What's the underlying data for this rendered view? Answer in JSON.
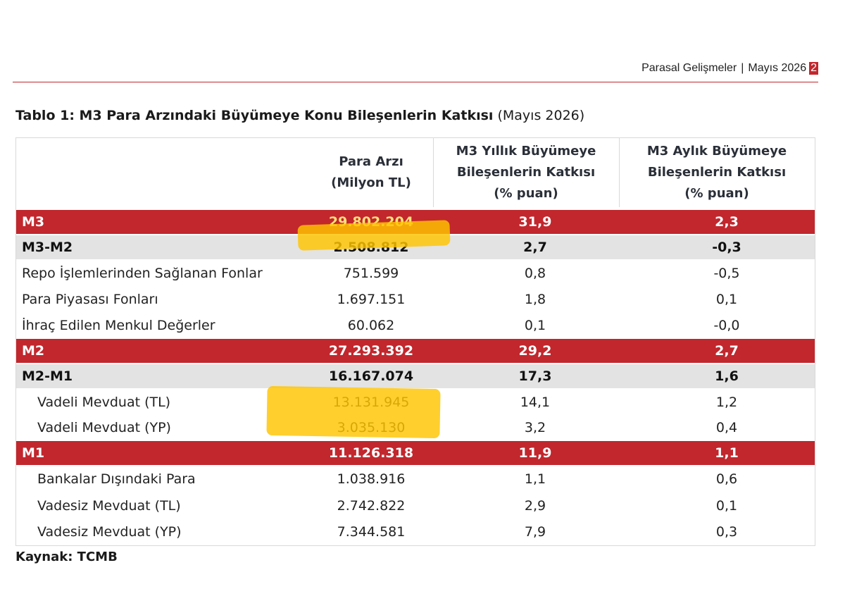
{
  "header": {
    "section": "Parasal Gelişmeler",
    "separator": "|",
    "date": "Mayıs 2026",
    "page": "2"
  },
  "title": {
    "bold": "Tablo 1: M3 Para Arzındaki Büyümeye Konu Bileşenlerin Katkısı",
    "normal": "(Mayıs 2026)"
  },
  "columns": [
    {
      "line1": "Para Arzı",
      "line2": "(Milyon TL)",
      "line3": ""
    },
    {
      "line1": "M3 Yıllık Büyümeye",
      "line2": "Bileşenlerin Katkısı",
      "line3": "(% puan)"
    },
    {
      "line1": "M3 Aylık Büyümeye",
      "line2": "Bileşenlerin Katkısı",
      "line3": "(% puan)"
    }
  ],
  "rows": [
    {
      "label": "M3",
      "money": "29.802.204",
      "yearly": "31,9",
      "monthly": "2,3"
    },
    {
      "label": "M3-M2",
      "money": "2.508.812",
      "yearly": "2,7",
      "monthly": "-0,3"
    },
    {
      "label": "Repo İşlemlerinden Sağlanan Fonlar",
      "money": "751.599",
      "yearly": "0,8",
      "monthly": "-0,5"
    },
    {
      "label": "Para Piyasası Fonları",
      "money": "1.697.151",
      "yearly": "1,8",
      "monthly": "0,1"
    },
    {
      "label": "İhraç Edilen Menkul Değerler",
      "money": "60.062",
      "yearly": "0,1",
      "monthly": "-0,0"
    },
    {
      "label": "M2",
      "money": "27.293.392",
      "yearly": "29,2",
      "monthly": "2,7"
    },
    {
      "label": "M2-M1",
      "money": "16.167.074",
      "yearly": "17,3",
      "monthly": "1,6"
    },
    {
      "label": "Vadeli Mevduat (TL)",
      "money": "13.131.945",
      "yearly": "14,1",
      "monthly": "1,2"
    },
    {
      "label": "Vadeli Mevduat (YP)",
      "money": "3.035.130",
      "yearly": "3,2",
      "monthly": "0,4"
    },
    {
      "label": "M1",
      "money": "11.126.318",
      "yearly": "11,9",
      "monthly": "1,1"
    },
    {
      "label": "Bankalar Dışındaki Para",
      "money": "1.038.916",
      "yearly": "1,1",
      "monthly": "0,6"
    },
    {
      "label": "Vadesiz Mevduat (TL)",
      "money": "2.742.822",
      "yearly": "2,9",
      "monthly": "0,1"
    },
    {
      "label": "Vadesiz Mevduat (YP)",
      "money": "7.344.581",
      "yearly": "7,9",
      "monthly": "0,3"
    }
  ],
  "source": "Kaynak: TCMB",
  "colors": {
    "accent_red": "#c1272d",
    "subtotal_grey": "#e3e3e3",
    "highlighter": "#ffc400"
  }
}
